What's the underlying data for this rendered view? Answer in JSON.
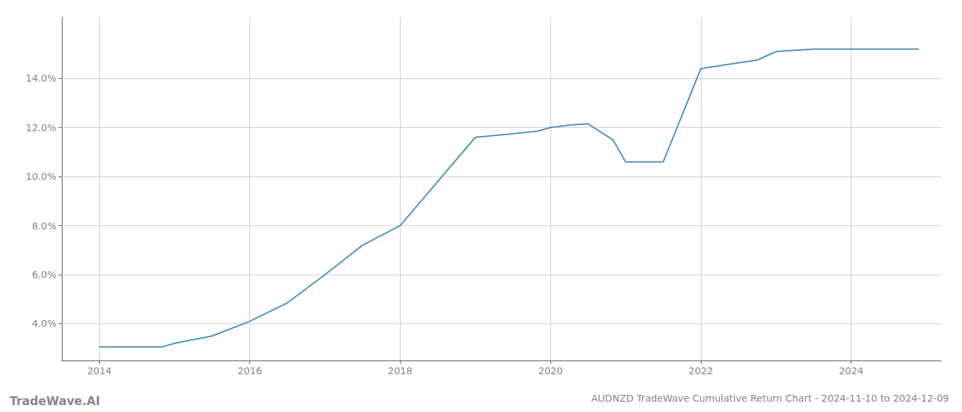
{
  "chart_data": {
    "type": "line",
    "title": "AUDNZD TradeWave Cumulative Return Chart - 2024-11-10 to 2024-12-09",
    "annotations": [
      "TradeWave.AI"
    ],
    "x": [
      2014.0,
      2014.83,
      2015.0,
      2015.5,
      2016.0,
      2016.5,
      2017.0,
      2017.5,
      2018.0,
      2018.5,
      2019.0,
      2019.5,
      2019.83,
      2020.0,
      2020.25,
      2020.5,
      2020.83,
      2021.0,
      2021.5,
      2022.0,
      2022.3,
      2022.75,
      2023.0,
      2023.5,
      2024.0,
      2024.9
    ],
    "values": [
      3.05,
      3.05,
      3.2,
      3.5,
      4.1,
      4.85,
      6.0,
      7.2,
      8.0,
      9.8,
      11.6,
      11.75,
      11.85,
      12.0,
      12.1,
      12.15,
      11.5,
      10.6,
      10.6,
      14.4,
      14.55,
      14.75,
      15.1,
      15.2,
      15.2,
      15.2
    ],
    "color": "#4a90b8",
    "xlim": [
      2013.5,
      2025.2
    ],
    "ylim": [
      2.5,
      16.5
    ],
    "xticks": [
      2014,
      2016,
      2018,
      2020,
      2022,
      2024
    ],
    "yticks": [
      {
        "value": 4.0,
        "label": "4.0%"
      },
      {
        "value": 6.0,
        "label": "6.0%"
      },
      {
        "value": 8.0,
        "label": "8.0%"
      },
      {
        "value": 10.0,
        "label": "10.0%"
      },
      {
        "value": 12.0,
        "label": "12.0%"
      },
      {
        "value": 14.0,
        "label": "14.0%"
      }
    ],
    "grid": true
  }
}
